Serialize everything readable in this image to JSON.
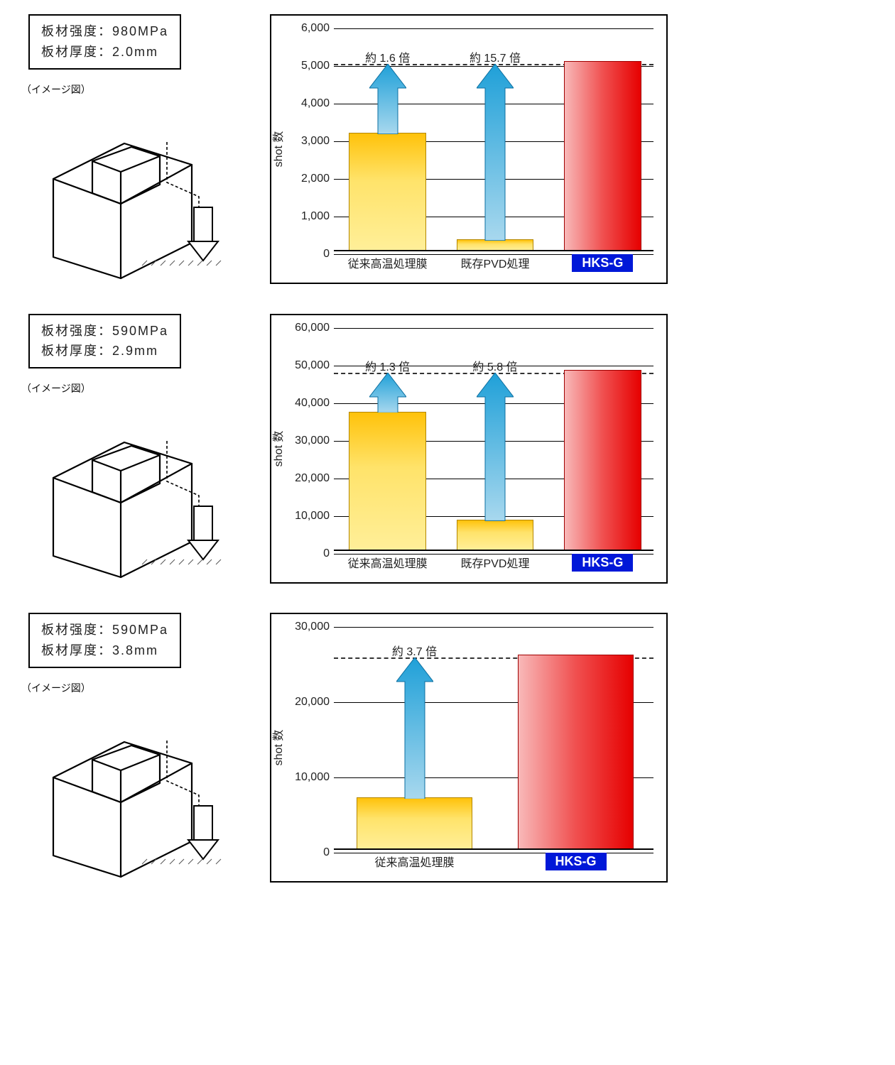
{
  "image_caption": "（イメージ図）",
  "charts_common": {
    "y_label": "shot 数",
    "bar_labels": {
      "yellow1": "従来高温処理膜",
      "yellow2": "既存PVD処理",
      "red": "HKS-G"
    },
    "colors": {
      "yellow_top": "#ffc20a",
      "yellow_mid": "#ffe36a",
      "yellow_bot": "#ffef99",
      "red_left": "#f8b9b9",
      "red_mid": "#f05050",
      "red_right": "#e60000",
      "arrow_top": "#1fa0d8",
      "arrow_bot": "#a8d8ee",
      "grid": "#000000",
      "dash": "#333333",
      "hks_bg": "#0018d8",
      "hks_text": "#ffffff"
    }
  },
  "panels": [
    {
      "spec": {
        "strength_label": "板材强度：",
        "strength_value": "980MPa",
        "thickness_label": "板材厚度：",
        "thickness_value": "2.0mm"
      },
      "chart": {
        "ymax": 6000,
        "ytick_step": 1000,
        "bars": [
          {
            "kind": "yellow",
            "value": 3150,
            "label_key": "yellow1"
          },
          {
            "kind": "yellow",
            "value": 320,
            "label_key": "yellow2"
          },
          {
            "kind": "red",
            "value": 5050,
            "label_key": "red"
          }
        ],
        "dash_at": 5050,
        "multipliers": [
          {
            "over_bar": 0,
            "text": "約 1.6 倍"
          },
          {
            "over_bar": 1,
            "text": "約 15.7 倍"
          }
        ]
      }
    },
    {
      "spec": {
        "strength_label": "板材强度：",
        "strength_value": "590MPa",
        "thickness_label": "板材厚度：",
        "thickness_value": "2.9mm"
      },
      "chart": {
        "ymax": 60000,
        "ytick_step": 10000,
        "bars": [
          {
            "kind": "yellow",
            "value": 37000,
            "label_key": "yellow1"
          },
          {
            "kind": "yellow",
            "value": 8300,
            "label_key": "yellow2"
          },
          {
            "kind": "red",
            "value": 48000,
            "label_key": "red"
          }
        ],
        "dash_at": 48000,
        "multipliers": [
          {
            "over_bar": 0,
            "text": "約 1.3 倍"
          },
          {
            "over_bar": 1,
            "text": "約 5.8 倍"
          }
        ]
      }
    },
    {
      "spec": {
        "strength_label": "板材强度：",
        "strength_value": "590MPa",
        "thickness_label": "板材厚度：",
        "thickness_value": "3.8mm"
      },
      "chart": {
        "ymax": 30000,
        "ytick_step": 10000,
        "bars": [
          {
            "kind": "yellow",
            "value": 7000,
            "label_key": "yellow1"
          },
          {
            "kind": "red",
            "value": 26000,
            "label_key": "red"
          }
        ],
        "dash_at": 26000,
        "multipliers": [
          {
            "over_bar": 0,
            "text": "約 3.7 倍"
          }
        ]
      }
    }
  ]
}
